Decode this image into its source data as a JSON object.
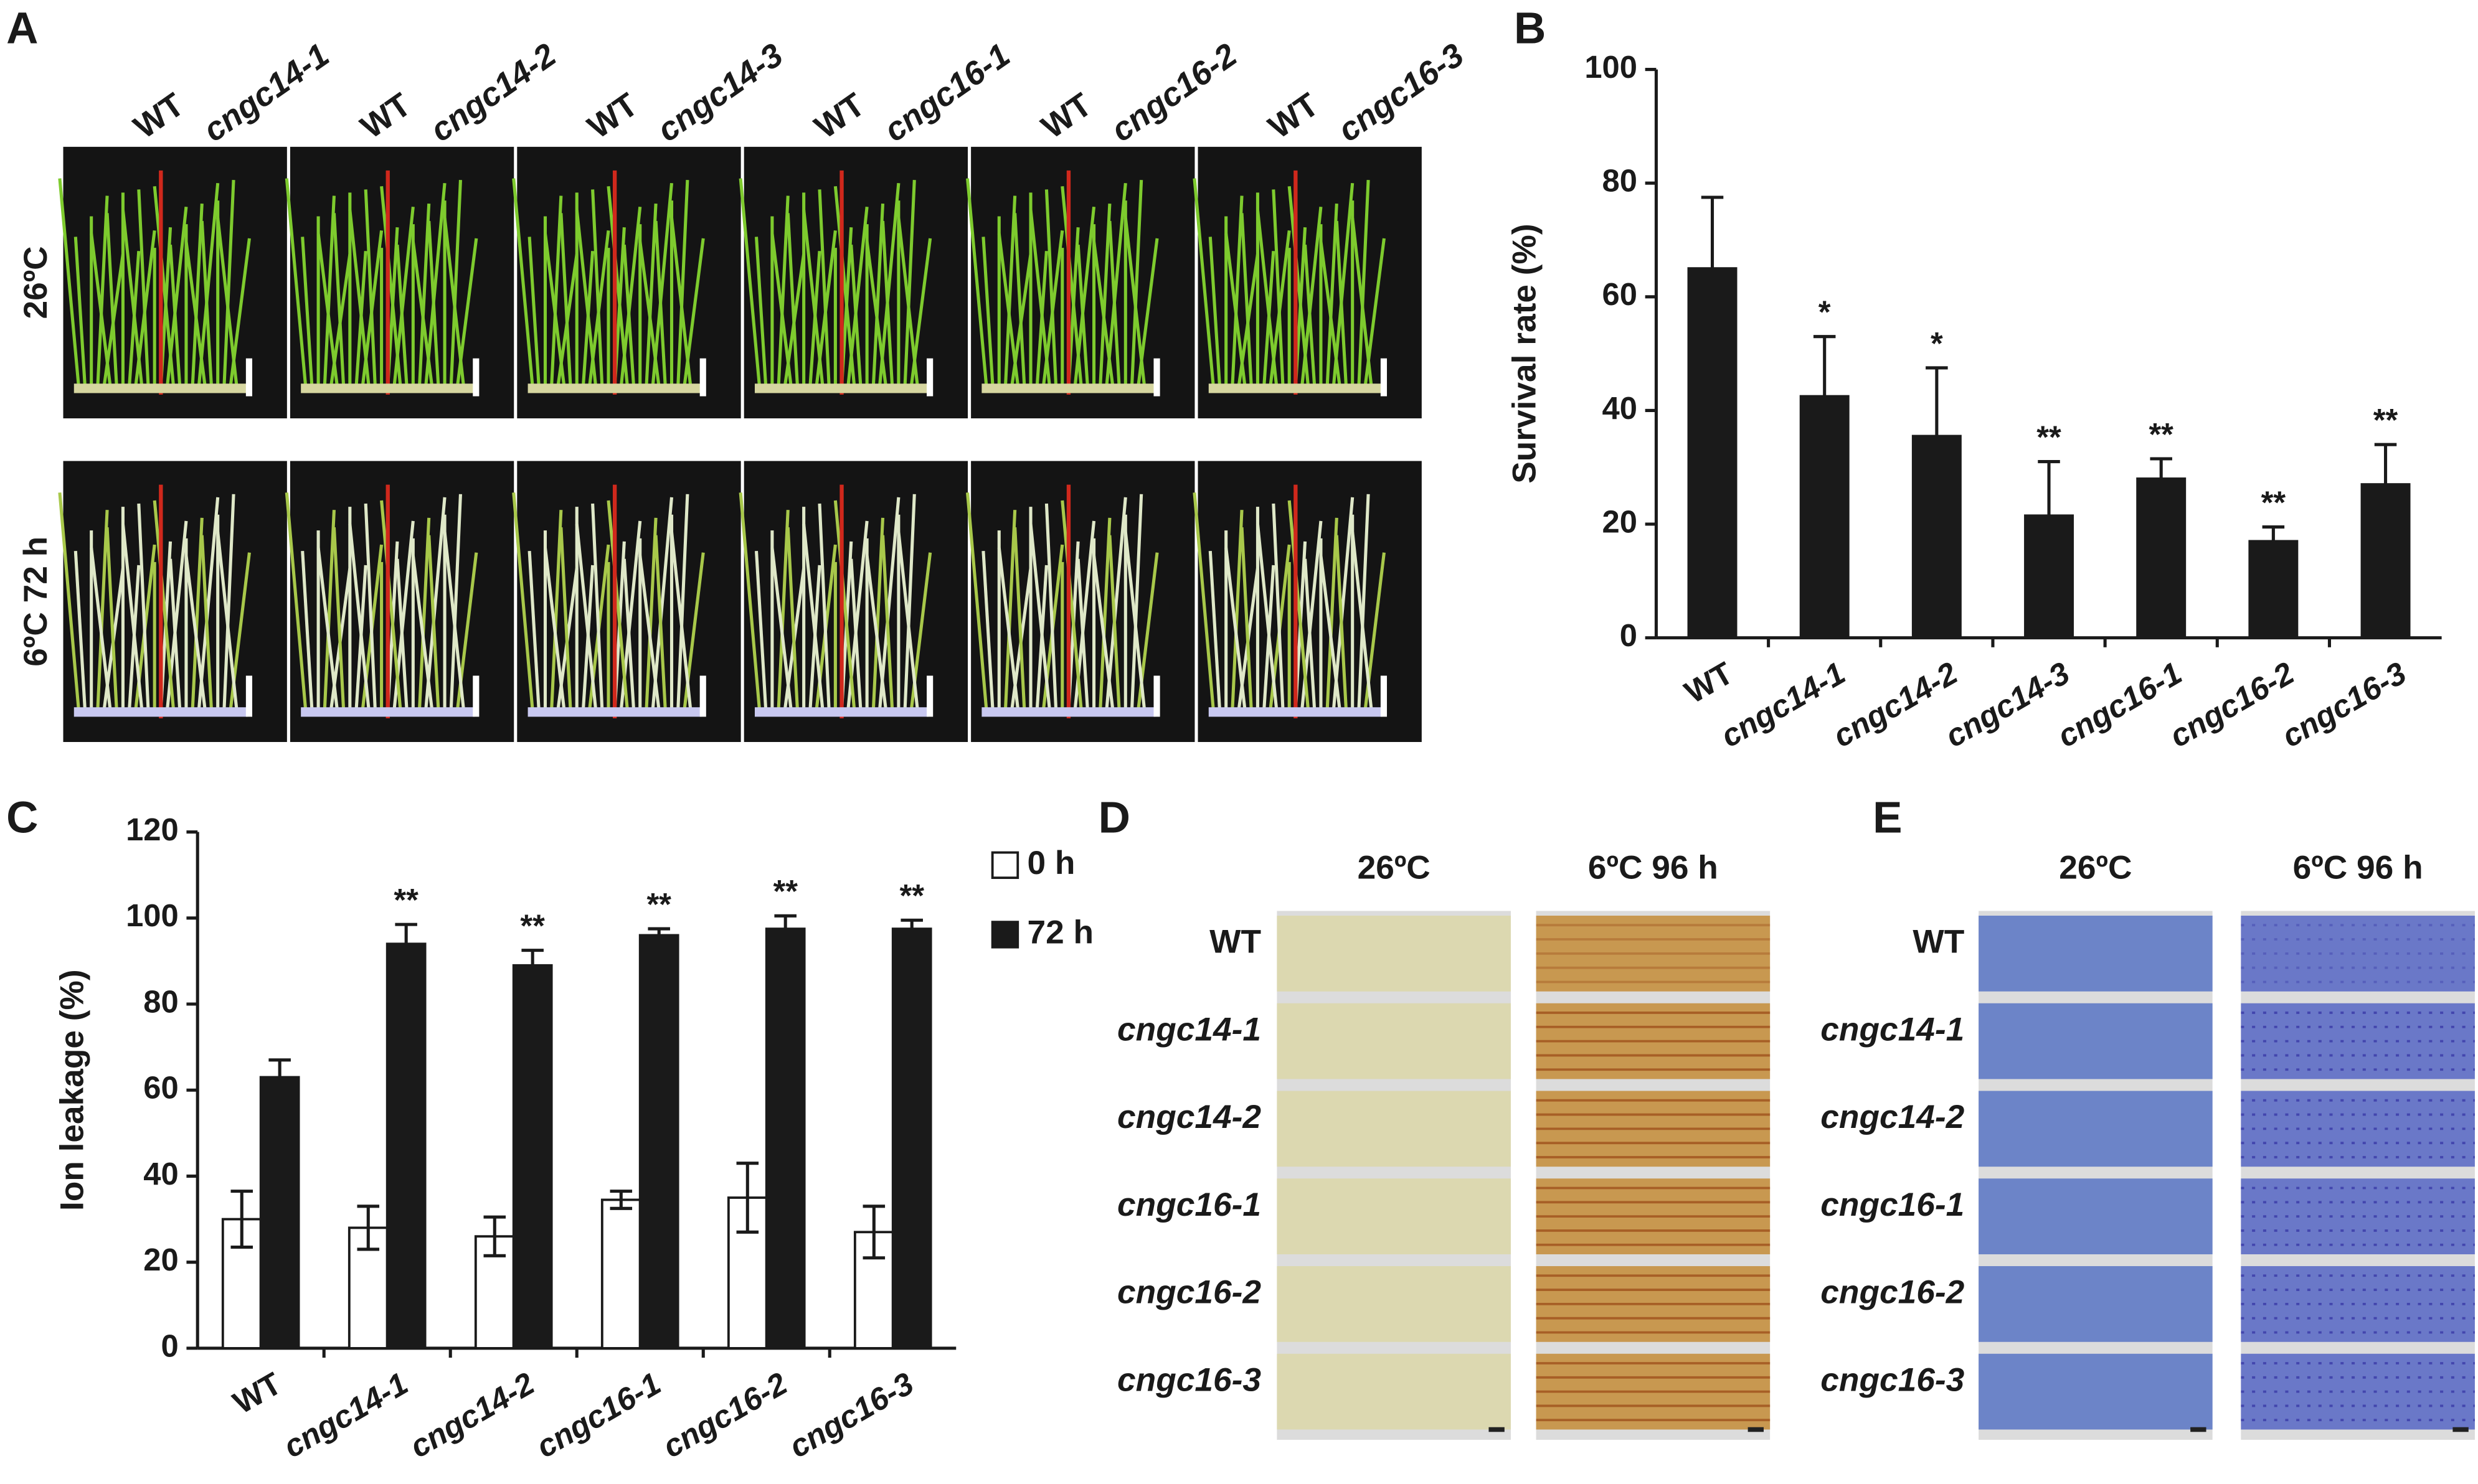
{
  "panel_labels": [
    "A",
    "B",
    "C",
    "D",
    "E"
  ],
  "panel_a": {
    "columns": [
      [
        "WT",
        "cngc14-1"
      ],
      [
        "WT",
        "cngc14-2"
      ],
      [
        "WT",
        "cngc14-3"
      ],
      [
        "WT",
        "cngc16-1"
      ],
      [
        "WT",
        "cngc16-2"
      ],
      [
        "WT",
        "cngc16-3"
      ]
    ],
    "rows": [
      "26ºC",
      "6ºC 72 h"
    ]
  },
  "panel_d": {
    "columns": [
      "26ºC",
      "6ºC 96 h"
    ],
    "rows": [
      "WT",
      "cngc14-1",
      "cngc14-2",
      "cngc16-1",
      "cngc16-2",
      "cngc16-3"
    ]
  },
  "panel_e": {
    "columns": [
      "26ºC",
      "6ºC 96 h"
    ],
    "rows": [
      "WT",
      "cngc14-1",
      "cngc14-2",
      "cngc16-1",
      "cngc16-2",
      "cngc16-3"
    ]
  },
  "chart_data": [
    {
      "type": "bar",
      "ylabel": "Survival rate (%)",
      "categories": [
        "WT",
        "cngc14-1",
        "cngc14-2",
        "cngc14-3",
        "cngc16-1",
        "cngc16-2",
        "cngc16-3"
      ],
      "values": [
        65,
        42.5,
        35.5,
        21.5,
        28,
        17,
        27
      ],
      "errors": [
        12.5,
        10.5,
        12,
        9.5,
        3.5,
        2.5,
        7
      ],
      "annotations": [
        null,
        "*",
        "*",
        "**",
        "**",
        "**",
        "**"
      ],
      "color": "#1a1a1a",
      "ylim": [
        0,
        100
      ],
      "yticks": [
        0,
        20,
        40,
        60,
        80,
        100
      ]
    },
    {
      "type": "bar",
      "ylabel": "Ion leakage (%)",
      "categories": [
        "WT",
        "cngc14-1",
        "cngc14-2",
        "cngc16-1",
        "cngc16-2",
        "cngc16-3"
      ],
      "series": [
        {
          "name": "0 h",
          "color": "#ffffff",
          "values": [
            30,
            28,
            26,
            34.5,
            35,
            27
          ],
          "errors": [
            6.5,
            5,
            4.5,
            2,
            8,
            6
          ]
        },
        {
          "name": "72 h",
          "color": "#1a1a1a",
          "values": [
            63,
            94,
            89,
            96,
            97.5,
            97.5
          ],
          "errors": [
            4,
            4.5,
            3.5,
            1.5,
            3,
            2
          ],
          "annotations": [
            null,
            "**",
            "**",
            "**",
            "**",
            "**"
          ]
        }
      ],
      "ylim": [
        0,
        120
      ],
      "yticks": [
        0,
        20,
        40,
        60,
        80,
        100,
        120
      ],
      "legend": "right"
    }
  ]
}
